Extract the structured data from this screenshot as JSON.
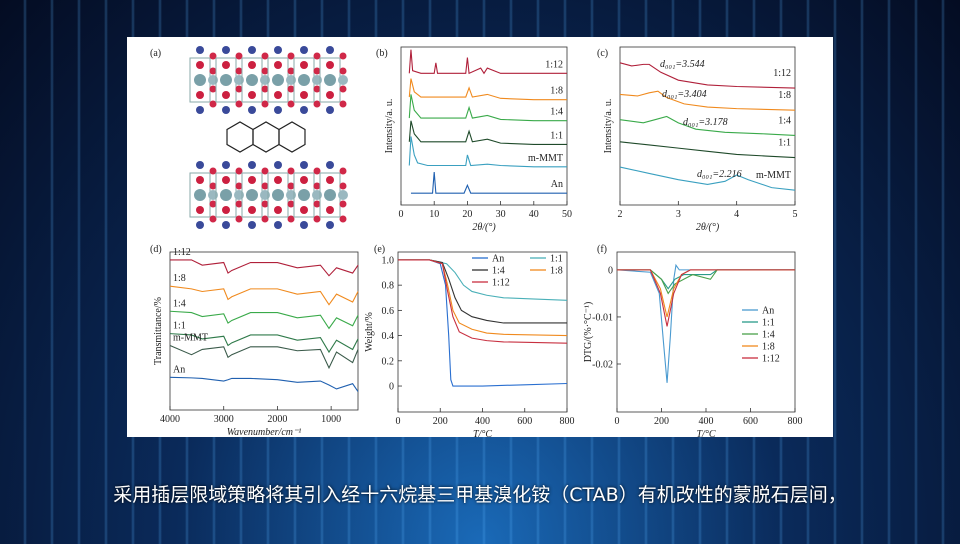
{
  "panel_a": {
    "label": "(a)"
  },
  "chart_data": [
    {
      "type": "line",
      "label": "(b)",
      "xlabel": "2θ/(°)",
      "ylabel": "Intensity/a. u.",
      "xlim": [
        0,
        50
      ],
      "xticks": [
        0,
        10,
        20,
        30,
        40,
        50
      ],
      "ylim": [
        0,
        6
      ],
      "series": [
        {
          "name": "1:12",
          "color": "#b0203a",
          "x": [
            2.5,
            3,
            3.5,
            6,
            10,
            10.5,
            11,
            19.5,
            20,
            20.5,
            24,
            25,
            26,
            30,
            40,
            50
          ],
          "values": [
            5.0,
            5.9,
            5.1,
            5.0,
            5.0,
            5.4,
            5.0,
            5.0,
            5.6,
            5.0,
            5.2,
            5.0,
            5.2,
            5.0,
            5.0,
            5.0
          ]
        },
        {
          "name": "1:8",
          "color": "#f08a1e",
          "x": [
            2.5,
            3,
            4,
            6,
            19.5,
            20.5,
            21.5,
            26,
            30,
            40,
            50
          ],
          "values": [
            4.1,
            4.8,
            4.3,
            4.1,
            4.1,
            4.45,
            4.1,
            4.2,
            4.05,
            4.0,
            4.0
          ]
        },
        {
          "name": "1:4",
          "color": "#3aaa4a",
          "x": [
            2.5,
            3,
            4,
            6,
            19.5,
            20.5,
            21.5,
            26,
            30,
            40,
            50
          ],
          "values": [
            3.3,
            4.2,
            3.6,
            3.3,
            3.3,
            3.7,
            3.3,
            3.4,
            3.25,
            3.2,
            3.2
          ]
        },
        {
          "name": "1:1",
          "color": "#1f4a2a",
          "x": [
            2.5,
            3,
            4,
            6,
            19.5,
            20.5,
            21.5,
            26,
            30,
            40,
            50
          ],
          "values": [
            2.4,
            3.2,
            2.7,
            2.4,
            2.4,
            2.8,
            2.4,
            2.5,
            2.35,
            2.3,
            2.3
          ]
        },
        {
          "name": "m-MMT",
          "color": "#3aa0c0",
          "x": [
            2.5,
            3,
            4,
            5,
            8,
            19.5,
            20,
            21,
            26,
            30,
            40,
            50
          ],
          "values": [
            1.5,
            2.6,
            1.9,
            1.6,
            1.5,
            1.5,
            1.9,
            1.5,
            1.55,
            1.5,
            1.45,
            1.45
          ]
        },
        {
          "name": "An",
          "color": "#2060b0",
          "x": [
            3,
            9.5,
            10,
            10.5,
            19,
            20,
            21,
            30,
            40,
            50
          ],
          "values": [
            0.45,
            0.45,
            1.25,
            0.45,
            0.45,
            0.75,
            0.45,
            0.45,
            0.45,
            0.45
          ]
        }
      ]
    },
    {
      "type": "line",
      "label": "(c)",
      "xlabel": "2θ/(°)",
      "ylabel": "Intensity/a. u.",
      "xlim": [
        2,
        5
      ],
      "xticks": [
        2,
        3,
        4,
        5
      ],
      "ylim": [
        0,
        5
      ],
      "annotations": [
        "d₀₀₁=3.544",
        "d₀₀₁=3.404",
        "d₀₀₁=3.178",
        "d₀₀₁=2.216"
      ],
      "series": [
        {
          "name": "1:12",
          "color": "#b0203a",
          "x": [
            2,
            2.2,
            2.4,
            2.5,
            2.7,
            3,
            3.5,
            4,
            5
          ],
          "values": [
            4.5,
            4.4,
            4.45,
            4.45,
            4.2,
            3.95,
            3.8,
            3.75,
            3.7
          ]
        },
        {
          "name": "1:8",
          "color": "#f08a1e",
          "x": [
            2,
            2.3,
            2.5,
            2.65,
            2.8,
            3.1,
            3.5,
            4,
            5
          ],
          "values": [
            3.5,
            3.45,
            3.55,
            3.6,
            3.4,
            3.2,
            3.1,
            3.05,
            3.0
          ]
        },
        {
          "name": "1:4",
          "color": "#3aaa4a",
          "x": [
            2,
            2.4,
            2.6,
            2.8,
            3,
            3.3,
            3.8,
            4.5,
            5
          ],
          "values": [
            2.7,
            2.6,
            2.7,
            2.8,
            2.6,
            2.4,
            2.3,
            2.25,
            2.2
          ]
        },
        {
          "name": "1:1",
          "color": "#1f4a2a",
          "x": [
            2,
            2.5,
            3,
            3.5,
            4,
            4.5,
            5
          ],
          "values": [
            2.0,
            1.9,
            1.8,
            1.7,
            1.6,
            1.55,
            1.5
          ]
        },
        {
          "name": "m-MMT",
          "color": "#3aa0c0",
          "x": [
            2,
            2.5,
            3,
            3.5,
            3.8,
            4,
            4.2,
            4.6,
            5
          ],
          "values": [
            1.2,
            1.0,
            0.8,
            0.65,
            0.75,
            0.95,
            0.8,
            0.55,
            0.47
          ]
        }
      ]
    },
    {
      "type": "line",
      "label": "(d)",
      "xlabel": "Wavenumber/cm⁻¹",
      "ylabel": "Transmittance/%",
      "xlim": [
        4000,
        500
      ],
      "xticks": [
        4000,
        3000,
        2000,
        1000
      ],
      "ylim": [
        0,
        6
      ],
      "series": [
        {
          "name": "1:12",
          "color": "#b0203a",
          "x": [
            4000,
            3600,
            3400,
            3000,
            2920,
            2850,
            2500,
            2000,
            1630,
            1200,
            1040,
            900,
            600,
            500
          ],
          "values": [
            5.7,
            5.7,
            5.5,
            5.6,
            5.2,
            5.3,
            5.6,
            5.6,
            5.4,
            5.5,
            5.1,
            5.4,
            5.2,
            5.5
          ]
        },
        {
          "name": "1:8",
          "color": "#f08a1e",
          "x": [
            4000,
            3600,
            3400,
            3000,
            2920,
            2850,
            2500,
            2000,
            1630,
            1200,
            1040,
            900,
            600,
            500
          ],
          "values": [
            4.7,
            4.6,
            4.5,
            4.6,
            4.2,
            4.3,
            4.6,
            4.6,
            4.4,
            4.5,
            4.0,
            4.4,
            4.1,
            4.5
          ]
        },
        {
          "name": "1:4",
          "color": "#3aaa4a",
          "x": [
            4000,
            3600,
            3400,
            3000,
            2920,
            2850,
            2500,
            2000,
            1630,
            1200,
            1040,
            900,
            600,
            500
          ],
          "values": [
            3.75,
            3.7,
            3.55,
            3.65,
            3.3,
            3.4,
            3.7,
            3.7,
            3.5,
            3.6,
            3.1,
            3.5,
            3.2,
            3.6
          ]
        },
        {
          "name": "1:1",
          "color": "#2f7a4a",
          "x": [
            4000,
            3600,
            3400,
            3000,
            2920,
            2850,
            2500,
            2000,
            1630,
            1200,
            1040,
            900,
            600,
            500
          ],
          "values": [
            2.9,
            2.85,
            2.7,
            2.8,
            2.45,
            2.55,
            2.85,
            2.85,
            2.65,
            2.75,
            2.2,
            2.65,
            2.3,
            2.7
          ]
        },
        {
          "name": "m-MMT",
          "color": "#3a5a4a",
          "x": [
            4000,
            3600,
            3400,
            3000,
            2920,
            2850,
            2500,
            2000,
            1630,
            1200,
            1040,
            900,
            600,
            500
          ],
          "values": [
            2.45,
            2.1,
            2.3,
            2.4,
            2.0,
            2.1,
            2.4,
            2.4,
            2.25,
            2.3,
            1.6,
            2.2,
            1.8,
            2.3
          ]
        },
        {
          "name": "An",
          "color": "#2060b0",
          "x": [
            4000,
            3600,
            3400,
            3000,
            2920,
            2850,
            2500,
            2000,
            1630,
            1200,
            1040,
            900,
            600,
            500
          ],
          "values": [
            1.24,
            1.22,
            1.2,
            1.1,
            1.15,
            1.2,
            1.2,
            1.15,
            1.05,
            1.1,
            0.95,
            0.8,
            1.0,
            0.7
          ]
        }
      ]
    },
    {
      "type": "line",
      "label": "(e)",
      "xlabel": "T/°C",
      "ylabel": "Weight/%",
      "xlim": [
        0,
        800
      ],
      "xticks": [
        0,
        200,
        400,
        600,
        800
      ],
      "ylim": [
        -0.206,
        1.063
      ],
      "yticks": [
        0,
        0.2,
        0.4,
        0.6,
        0.8,
        {
          "value": 1.0,
          "label": "1.0"
        }
      ],
      "legend": "upper right",
      "series": [
        {
          "name": "An",
          "color": "#2a6fd0",
          "x": [
            0,
            150,
            200,
            225,
            240,
            250,
            260,
            400,
            600,
            800
          ],
          "values": [
            1.0,
            1.0,
            0.97,
            0.8,
            0.4,
            0.05,
            0.0,
            0.0,
            0.01,
            0.02
          ]
        },
        {
          "name": "1:1",
          "color": "#4ab0b8",
          "x": [
            0,
            150,
            230,
            270,
            310,
            350,
            420,
            500,
            650,
            800
          ],
          "values": [
            1.0,
            1.0,
            0.97,
            0.9,
            0.8,
            0.75,
            0.72,
            0.7,
            0.69,
            0.68
          ]
        },
        {
          "name": "1:4",
          "color": "#333333",
          "x": [
            0,
            150,
            210,
            240,
            270,
            300,
            350,
            420,
            500,
            800
          ],
          "values": [
            1.0,
            1.0,
            0.98,
            0.85,
            0.7,
            0.6,
            0.55,
            0.52,
            0.5,
            0.5
          ]
        },
        {
          "name": "1:8",
          "color": "#f08a1e",
          "x": [
            0,
            150,
            210,
            235,
            260,
            290,
            350,
            420,
            500,
            800
          ],
          "values": [
            1.0,
            1.0,
            0.97,
            0.8,
            0.6,
            0.5,
            0.45,
            0.42,
            0.41,
            0.4
          ]
        },
        {
          "name": "1:12",
          "color": "#c83040",
          "x": [
            0,
            150,
            210,
            235,
            260,
            290,
            350,
            420,
            500,
            800
          ],
          "values": [
            1.0,
            1.0,
            0.97,
            0.75,
            0.55,
            0.43,
            0.38,
            0.36,
            0.35,
            0.34
          ]
        }
      ]
    },
    {
      "type": "line",
      "label": "(f)",
      "xlabel": "T/°C",
      "ylabel": "DTG/(%·°C⁻¹)",
      "xlim": [
        0,
        800
      ],
      "xticks": [
        0,
        200,
        400,
        600,
        800
      ],
      "ylim": [
        -0.0302,
        0.0038
      ],
      "yticks": [
        0,
        -0.01,
        -0.02
      ],
      "legend": "right",
      "series": [
        {
          "name": "An",
          "color": "#4a9ad0",
          "x": [
            0,
            150,
            190,
            210,
            225,
            240,
            255,
            265,
            280,
            400,
            800
          ],
          "values": [
            0,
            -0.0005,
            -0.005,
            -0.016,
            -0.024,
            -0.014,
            -0.002,
            0.001,
            0,
            0,
            0
          ]
        },
        {
          "name": "1:1",
          "color": "#2a9a8a",
          "x": [
            0,
            150,
            200,
            230,
            260,
            300,
            420,
            450,
            800
          ],
          "values": [
            0,
            0,
            -0.002,
            -0.004,
            -0.002,
            -0.001,
            -0.001,
            0,
            0
          ]
        },
        {
          "name": "1:4",
          "color": "#4aa04a",
          "x": [
            0,
            150,
            200,
            230,
            260,
            300,
            340,
            420,
            450,
            800
          ],
          "values": [
            0,
            0,
            -0.002,
            -0.005,
            -0.003,
            -0.002,
            -0.001,
            -0.002,
            0,
            0
          ]
        },
        {
          "name": "1:8",
          "color": "#f08a1e",
          "x": [
            0,
            150,
            195,
            225,
            255,
            290,
            330,
            800
          ],
          "values": [
            0,
            0,
            -0.004,
            -0.01,
            -0.004,
            -0.001,
            0,
            0
          ]
        },
        {
          "name": "1:12",
          "color": "#c83040",
          "x": [
            0,
            150,
            195,
            225,
            255,
            290,
            330,
            800
          ],
          "values": [
            0,
            0,
            -0.005,
            -0.012,
            -0.005,
            -0.001,
            0,
            0
          ]
        }
      ]
    }
  ],
  "subtitle": "采用插层限域策略将其引入经十六烷基三甲基溴化铵（CTAB）有机改性的蒙脱石层间，"
}
